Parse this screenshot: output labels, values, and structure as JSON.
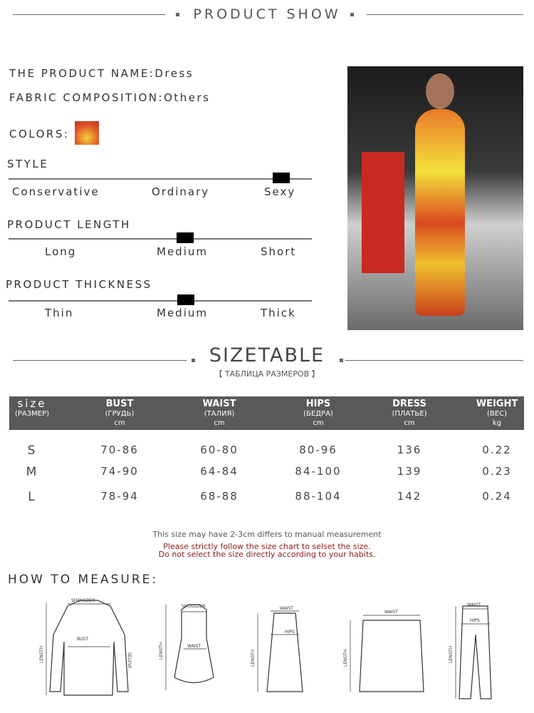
{
  "header": {
    "title": "PRODUCT SHOW"
  },
  "product": {
    "name_label": "THE PRODUCT NAME:",
    "name": "Dress",
    "fabric_label": "FABRIC COMPOSITION:",
    "fabric": "Others",
    "colors_label": "COLORS:",
    "swatch_colors": [
      "#e0562a",
      "#f5d23a",
      "#b8341c"
    ]
  },
  "scales": [
    {
      "title": "STYLE",
      "options": [
        "Conservative",
        "Ordinary",
        "Sexy"
      ],
      "selected": "Sexy"
    },
    {
      "title": "PRODUCT LENGTH",
      "options": [
        "Long",
        "Medium",
        "Short"
      ],
      "selected": "Medium"
    },
    {
      "title": "PRODUCT THICKNESS",
      "options": [
        "Thin",
        "Medium",
        "Thick"
      ],
      "selected": "Medium"
    }
  ],
  "sizetable": {
    "title": "SIZETABLE",
    "subtitle": "【 ТАБЛИЦА РАЗМЕРОВ 】",
    "headers": [
      {
        "main": "size",
        "ru": "(РАЗМЕР)",
        "unit": ""
      },
      {
        "main": "BUST",
        "ru": "(ГРУДЬ)",
        "unit": "cm"
      },
      {
        "main": "WAIST",
        "ru": "(ТАЛИЯ)",
        "unit": "cm"
      },
      {
        "main": "HIPS",
        "ru": "(БЕДРА)",
        "unit": "cm"
      },
      {
        "main": "DRESS",
        "ru": "(ПЛАТЬЕ)",
        "unit": "cm"
      },
      {
        "main": "WEIGHT",
        "ru": "(ВЕС)",
        "unit": "kg"
      }
    ],
    "rows": [
      [
        "S",
        "70-86",
        "60-80",
        "80-96",
        "136",
        "0.22"
      ],
      [
        "M",
        "74-90",
        "64-84",
        "84-100",
        "139",
        "0.23"
      ],
      [
        "L",
        "78-94",
        "68-88",
        "88-104",
        "142",
        "0.24"
      ]
    ]
  },
  "notes": {
    "line1": "This size may have 2-3cm differs to manual measurement",
    "line2": "Please strictly follow the size chart to selset the size.",
    "line3": "Do not select the size directly according to your habits.",
    "warn_color": "#8b1a1a"
  },
  "measure": {
    "title": "HOW TO MEASURE:",
    "labels": {
      "shoulder": "SHOULDER",
      "bust": "BUST",
      "length": "LENGTH",
      "sleeve": "SELEVE",
      "waist": "WAIST",
      "hips": "HIPS"
    }
  }
}
